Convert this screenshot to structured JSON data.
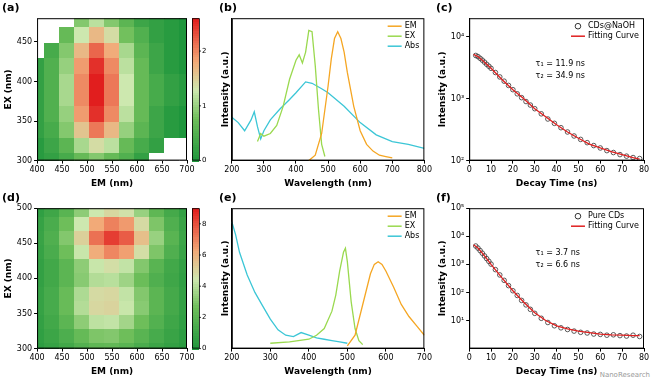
{
  "watermark": "NanoResearch",
  "chart_data": [
    {
      "type": "heatmap",
      "title": "(a)",
      "xlabel": "EM (nm)",
      "ylabel": "EX (nm)",
      "xlim": [
        400,
        700
      ],
      "xticks": [
        400,
        450,
        500,
        550,
        600,
        650,
        700
      ],
      "ylim": [
        300,
        480
      ],
      "yticks": [
        300,
        350,
        400,
        450
      ],
      "x": [
        400,
        430,
        460,
        490,
        520,
        550,
        580,
        610,
        640,
        670,
        700
      ],
      "y": [
        300,
        320,
        340,
        360,
        380,
        400,
        420,
        440,
        460,
        480
      ],
      "cells": [
        [
          0.1,
          0.2,
          0.4,
          0.7,
          0.9,
          0.7,
          0.5,
          0.2,
          null,
          null,
          null
        ],
        [
          0.1,
          0.3,
          0.6,
          1.1,
          1.4,
          1.2,
          0.7,
          0.4,
          0.2,
          null,
          null
        ],
        [
          0.2,
          0.4,
          0.9,
          1.6,
          2.1,
          1.7,
          1.0,
          0.6,
          0.3,
          0.1,
          0.0
        ],
        [
          0.2,
          0.5,
          1.0,
          1.9,
          2.5,
          2.0,
          1.2,
          0.7,
          0.3,
          0.1,
          0.0
        ],
        [
          0.2,
          0.5,
          1.1,
          2.0,
          2.6,
          2.1,
          1.3,
          0.7,
          0.4,
          0.2,
          0.1
        ],
        [
          0.2,
          0.5,
          1.1,
          2.0,
          2.6,
          2.1,
          1.3,
          0.7,
          0.4,
          0.2,
          0.1
        ],
        [
          0.2,
          0.5,
          1.0,
          1.9,
          2.5,
          2.0,
          1.2,
          0.7,
          0.3,
          0.1,
          0.0
        ],
        [
          null,
          0.4,
          0.9,
          1.7,
          2.2,
          1.8,
          1.1,
          0.6,
          0.3,
          0.1,
          0.0
        ],
        [
          null,
          null,
          0.7,
          1.3,
          1.7,
          1.4,
          0.8,
          0.5,
          0.2,
          0.1,
          0.0
        ],
        [
          null,
          null,
          null,
          0.9,
          1.2,
          0.9,
          0.6,
          0.3,
          0.2,
          0.1,
          0.0
        ]
      ],
      "colorbar": {
        "range": [
          0,
          2.6
        ],
        "ticks": [
          0,
          1,
          2
        ]
      },
      "grid": false
    },
    {
      "type": "line",
      "title": "(b)",
      "xlabel": "Wavelength (nm)",
      "ylabel": "Intensity (a.u.)",
      "xlim": [
        200,
        800
      ],
      "xticks": [
        200,
        300,
        400,
        500,
        600,
        700,
        800
      ],
      "ylim": [
        0,
        1.05
      ],
      "tick_labels": "x",
      "grid": false,
      "legend": "upper right",
      "series": [
        {
          "name": "EM",
          "color": "#f5a623",
          "line_style": "solid",
          "x": [
            440,
            460,
            480,
            500,
            510,
            520,
            530,
            540,
            550,
            560,
            580,
            600,
            620,
            640,
            660,
            680,
            700
          ],
          "values": [
            0.0,
            0.04,
            0.2,
            0.55,
            0.75,
            0.9,
            0.95,
            0.9,
            0.8,
            0.65,
            0.4,
            0.22,
            0.12,
            0.07,
            0.04,
            0.03,
            0.02
          ]
        },
        {
          "name": "EX",
          "color": "#9ad94f",
          "line_style": "solid",
          "x": [
            280,
            290,
            300,
            320,
            340,
            360,
            380,
            400,
            410,
            420,
            430,
            440,
            450,
            460,
            470,
            480,
            490
          ],
          "values": [
            0.14,
            0.2,
            0.18,
            0.2,
            0.26,
            0.4,
            0.6,
            0.74,
            0.78,
            0.72,
            0.8,
            0.96,
            0.95,
            0.7,
            0.38,
            0.12,
            0.03
          ]
        },
        {
          "name": "Abs",
          "color": "#3cc6d6",
          "line_style": "solid",
          "x": [
            200,
            220,
            240,
            260,
            270,
            280,
            290,
            300,
            320,
            350,
            380,
            400,
            430,
            450,
            480,
            500,
            550,
            600,
            650,
            700,
            750,
            800
          ],
          "values": [
            0.32,
            0.28,
            0.22,
            0.3,
            0.36,
            0.25,
            0.16,
            0.22,
            0.3,
            0.38,
            0.45,
            0.5,
            0.58,
            0.57,
            0.53,
            0.5,
            0.4,
            0.28,
            0.19,
            0.14,
            0.12,
            0.09
          ]
        }
      ]
    },
    {
      "type": "scatter",
      "title": "(c)",
      "xlabel": "Decay Time (ns)",
      "ylabel": "Intensity (a.u.)",
      "xlim": [
        0,
        80
      ],
      "xticks": [
        0,
        10,
        20,
        30,
        40,
        50,
        60,
        70,
        80
      ],
      "ylim": [
        100,
        20000
      ],
      "yticks": [
        {
          "value": 100,
          "label": "10²"
        },
        {
          "value": 1000,
          "label": "10³"
        },
        {
          "value": 10000,
          "label": "10⁴"
        }
      ],
      "log": "y",
      "grid": false,
      "legend": "upper right",
      "annotations": [
        "τ₁ = 11.9 ns",
        "τ₂ = 34.9 ns"
      ],
      "series": [
        {
          "name": "CDs@NaOH",
          "type": "scatter",
          "marker": "circle",
          "color": "#333333",
          "x": [
            3,
            4,
            5,
            6,
            7,
            8,
            9,
            10,
            12,
            14,
            16,
            18,
            20,
            22,
            24,
            26,
            28,
            30,
            33,
            36,
            39,
            42,
            45,
            48,
            51,
            54,
            57,
            60,
            63,
            66,
            69,
            72,
            75,
            78
          ],
          "values": [
            5000,
            4800,
            4500,
            4200,
            3900,
            3600,
            3350,
            3100,
            2650,
            2250,
            1920,
            1640,
            1400,
            1200,
            1040,
            900,
            790,
            690,
            570,
            470,
            400,
            340,
            290,
            250,
            220,
            195,
            175,
            160,
            145,
            135,
            125,
            118,
            112,
            108
          ]
        },
        {
          "name": "Fitting Curve",
          "type": "line",
          "line_style": "solid",
          "color": "#e02020",
          "x": [
            2,
            4,
            6,
            8,
            10,
            15,
            20,
            25,
            30,
            35,
            40,
            45,
            50,
            55,
            60,
            65,
            70,
            75,
            78
          ],
          "values": [
            5200,
            4800,
            4200,
            3600,
            3100,
            2050,
            1400,
            1000,
            690,
            510,
            380,
            290,
            230,
            185,
            160,
            140,
            125,
            112,
            106
          ]
        }
      ]
    },
    {
      "type": "heatmap",
      "title": "(d)",
      "xlabel": "EM (nm)",
      "ylabel": "EX (nm)",
      "xlim": [
        400,
        700
      ],
      "xticks": [
        400,
        450,
        500,
        550,
        600,
        650,
        700
      ],
      "ylim": [
        300,
        500
      ],
      "yticks": [
        300,
        350,
        400,
        450,
        500
      ],
      "x": [
        400,
        430,
        460,
        490,
        520,
        550,
        580,
        610,
        640,
        670,
        700
      ],
      "y": [
        300,
        320,
        340,
        360,
        380,
        400,
        420,
        440,
        460,
        480,
        500
      ],
      "cells": [
        [
          0.5,
          0.8,
          1.2,
          1.8,
          2.2,
          2.3,
          2.0,
          1.5,
          1.0,
          0.7,
          0.4
        ],
        [
          0.6,
          1.0,
          1.6,
          2.4,
          3.0,
          3.1,
          2.7,
          2.0,
          1.4,
          0.9,
          0.5
        ],
        [
          0.7,
          1.2,
          2.1,
          3.3,
          4.2,
          4.3,
          3.7,
          2.7,
          1.8,
          1.1,
          0.6
        ],
        [
          0.8,
          1.4,
          2.5,
          4.0,
          5.0,
          5.1,
          4.4,
          3.2,
          2.1,
          1.3,
          0.7
        ],
        [
          0.8,
          1.4,
          2.5,
          3.9,
          4.9,
          5.0,
          4.3,
          3.1,
          2.1,
          1.3,
          0.7
        ],
        [
          0.7,
          1.2,
          2.1,
          3.2,
          4.0,
          4.1,
          3.6,
          2.6,
          1.7,
          1.1,
          0.6
        ],
        [
          0.7,
          1.2,
          2.1,
          3.3,
          4.4,
          4.8,
          4.3,
          3.1,
          2.0,
          1.2,
          0.7
        ],
        [
          0.8,
          1.5,
          2.7,
          4.4,
          6.2,
          7.0,
          6.5,
          4.8,
          3.0,
          1.7,
          0.9
        ],
        [
          0.9,
          1.7,
          3.1,
          5.2,
          7.4,
          8.4,
          7.8,
          5.7,
          3.5,
          2.0,
          1.0
        ],
        [
          0.8,
          1.5,
          2.7,
          4.5,
          6.3,
          7.1,
          6.6,
          4.9,
          3.0,
          1.7,
          0.9
        ],
        [
          0.6,
          1.1,
          2.0,
          3.3,
          4.5,
          5.0,
          4.7,
          3.5,
          2.2,
          1.3,
          0.7
        ]
      ],
      "colorbar": {
        "range": [
          0,
          9
        ],
        "ticks": [
          0,
          2,
          4,
          6,
          8
        ]
      },
      "grid": false
    },
    {
      "type": "line",
      "title": "(e)",
      "xlabel": "Wavelength (nm)",
      "ylabel": "Intensity (a.u.)",
      "xlim": [
        200,
        700
      ],
      "xticks": [
        200,
        300,
        400,
        500,
        600,
        700
      ],
      "ylim": [
        0,
        1.05
      ],
      "tick_labels": "x",
      "grid": false,
      "legend": "upper right",
      "series": [
        {
          "name": "EM",
          "color": "#f5a623",
          "line_style": "solid",
          "x": [
            500,
            520,
            540,
            560,
            570,
            580,
            590,
            600,
            620,
            640,
            660,
            680,
            700
          ],
          "values": [
            0.02,
            0.1,
            0.33,
            0.56,
            0.63,
            0.65,
            0.63,
            0.58,
            0.46,
            0.33,
            0.24,
            0.17,
            0.1
          ]
        },
        {
          "name": "EX",
          "color": "#9ad94f",
          "line_style": "solid",
          "x": [
            300,
            350,
            400,
            420,
            440,
            460,
            470,
            480,
            490,
            495,
            500,
            510,
            520,
            530,
            540
          ],
          "values": [
            0.04,
            0.05,
            0.07,
            0.1,
            0.15,
            0.28,
            0.4,
            0.58,
            0.72,
            0.75,
            0.65,
            0.35,
            0.15,
            0.06,
            0.03
          ]
        },
        {
          "name": "Abs",
          "color": "#3cc6d6",
          "line_style": "solid",
          "x": [
            200,
            210,
            220,
            240,
            260,
            280,
            300,
            320,
            340,
            360,
            380,
            400,
            420,
            440,
            460,
            480,
            500
          ],
          "values": [
            0.95,
            0.85,
            0.72,
            0.55,
            0.42,
            0.32,
            0.22,
            0.14,
            0.1,
            0.09,
            0.12,
            0.1,
            0.08,
            0.07,
            0.06,
            0.05,
            0.04
          ]
        }
      ]
    },
    {
      "type": "scatter",
      "title": "(f)",
      "xlabel": "Decay Time (ns)",
      "ylabel": "Intensity (a.u.)",
      "xlim": [
        0,
        80
      ],
      "xticks": [
        0,
        10,
        20,
        30,
        40,
        50,
        60,
        70,
        80
      ],
      "ylim": [
        1,
        100000
      ],
      "yticks": [
        {
          "value": 10,
          "label": "10¹"
        },
        {
          "value": 100,
          "label": "10²"
        },
        {
          "value": 1000,
          "label": "10³"
        },
        {
          "value": 10000,
          "label": "10⁴"
        },
        {
          "value": 100000,
          "label": "10⁵"
        }
      ],
      "log": "y",
      "grid": false,
      "legend": "upper right",
      "annotations": [
        "τ₁ = 3.7 ns",
        "τ₂ = 6.6 ns"
      ],
      "series": [
        {
          "name": "Pure CDs",
          "type": "scatter",
          "marker": "circle",
          "color": "#333333",
          "x": [
            3,
            4,
            5,
            6,
            7,
            8,
            9,
            10,
            12,
            14,
            16,
            18,
            20,
            22,
            24,
            26,
            28,
            30,
            33,
            36,
            39,
            42,
            45,
            48,
            51,
            54,
            57,
            60,
            63,
            66,
            69,
            72,
            75,
            78
          ],
          "values": [
            4500,
            3800,
            3100,
            2500,
            2000,
            1600,
            1280,
            1020,
            650,
            420,
            270,
            175,
            115,
            78,
            52,
            36,
            25,
            18,
            12,
            8.5,
            6.5,
            5.5,
            4.8,
            4.2,
            3.8,
            3.6,
            3.3,
            3.2,
            3.0,
            3.1,
            2.9,
            2.8,
            3.0,
            2.7
          ]
        },
        {
          "name": "Fitting Curve",
          "type": "line",
          "line_style": "solid",
          "color": "#e02020",
          "x": [
            2,
            4,
            6,
            8,
            10,
            15,
            20,
            25,
            30,
            35,
            40,
            45,
            50,
            55,
            60,
            65,
            70,
            75,
            78
          ],
          "values": [
            5000,
            3800,
            2500,
            1600,
            1000,
            330,
            115,
            45,
            19,
            10,
            6.5,
            5,
            4.2,
            3.7,
            3.3,
            3.1,
            3.0,
            2.9,
            2.9
          ]
        }
      ]
    }
  ]
}
